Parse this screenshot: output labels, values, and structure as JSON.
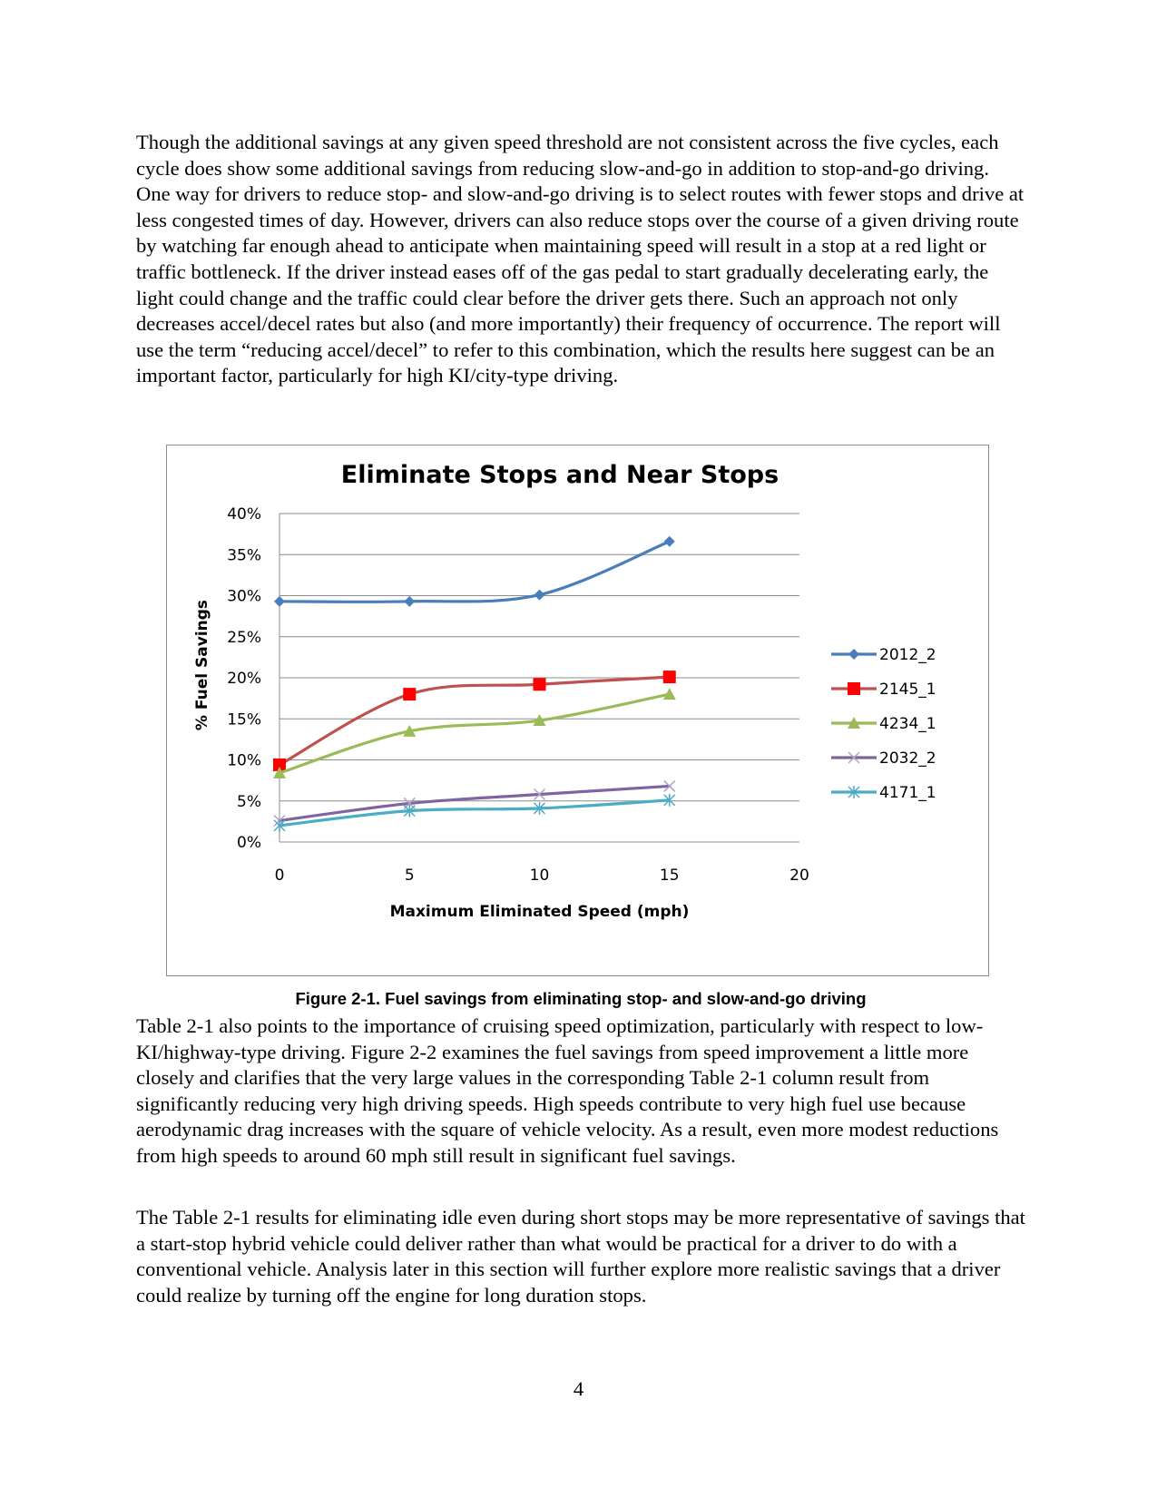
{
  "paragraphs": {
    "p1": "Though the additional savings at any given speed threshold are not consistent across the five cycles, each cycle does show some additional savings from reducing slow-and-go in addition to stop-and-go driving. One way for drivers to reduce stop- and slow-and-go driving is to select routes with fewer stops and drive at less congested times of day. However, drivers can also reduce stops over the course of a given driving route by watching far enough ahead to anticipate when maintaining speed will result in a stop at a red light or traffic bottleneck. If the driver instead eases off of the gas pedal to start gradually decelerating early, the light could change and the traffic could clear before the driver gets there. Such an approach not only decreases accel/decel rates but also (and more importantly) their frequency of occurrence. The report will use the term “reducing accel/decel” to refer to this combination, which the results here suggest can be an important factor, particularly for high KI/city-type driving.",
    "p2": "Table 2-1 also points to the importance of cruising speed optimization, particularly with respect to low-KI/highway-type driving. Figure 2-2 examines the fuel savings from speed improvement a little more closely and clarifies that the very large values in the corresponding Table 2-1 column result from significantly reducing very high driving speeds. High speeds contribute to very high fuel use because aerodynamic drag increases with the square of vehicle velocity. As a result, even more modest reductions from high speeds to around 60 mph still result in significant fuel savings.",
    "p3": "The Table 2-1 results for eliminating idle even during short stops may be more representative of savings that a start-stop hybrid vehicle could deliver rather than what would be practical for a driver to do with a conventional vehicle. Analysis later in this section will further explore more realistic savings that a driver could realize by turning off the engine for long duration stops."
  },
  "figure": {
    "caption": "Figure 2-1. Fuel savings from eliminating stop- and slow-and-go driving"
  },
  "page_number": "4",
  "chart_data": {
    "type": "line",
    "title": "Eliminate Stops and Near Stops",
    "xlabel": "Maximum Eliminated Speed (mph)",
    "ylabel": "% Fuel Savings",
    "xlim": [
      0,
      20
    ],
    "ylim": [
      0,
      0.4
    ],
    "x_ticks": [
      "0",
      "5",
      "10",
      "15",
      "20"
    ],
    "y_ticks": [
      "0%",
      "5%",
      "10%",
      "15%",
      "20%",
      "25%",
      "30%",
      "35%",
      "40%"
    ],
    "grid": "horizontal",
    "legend_position": "right",
    "x": [
      0,
      5,
      10,
      15
    ],
    "series": [
      {
        "name": "2012_2",
        "values": [
          0.293,
          0.293,
          0.301,
          0.366
        ],
        "color": "#4a7ebb",
        "marker": "diamond"
      },
      {
        "name": "2145_1",
        "values": [
          0.094,
          0.18,
          0.192,
          0.201
        ],
        "color": "#c0504d",
        "marker": "square"
      },
      {
        "name": "4234_1",
        "values": [
          0.084,
          0.135,
          0.148,
          0.18
        ],
        "color": "#9bbb59",
        "marker": "triangle"
      },
      {
        "name": "2032_2",
        "values": [
          0.026,
          0.047,
          0.058,
          0.068
        ],
        "color": "#8064a2",
        "marker": "x"
      },
      {
        "name": "4171_1",
        "values": [
          0.02,
          0.038,
          0.041,
          0.051
        ],
        "color": "#4bacc6",
        "marker": "star"
      }
    ]
  }
}
